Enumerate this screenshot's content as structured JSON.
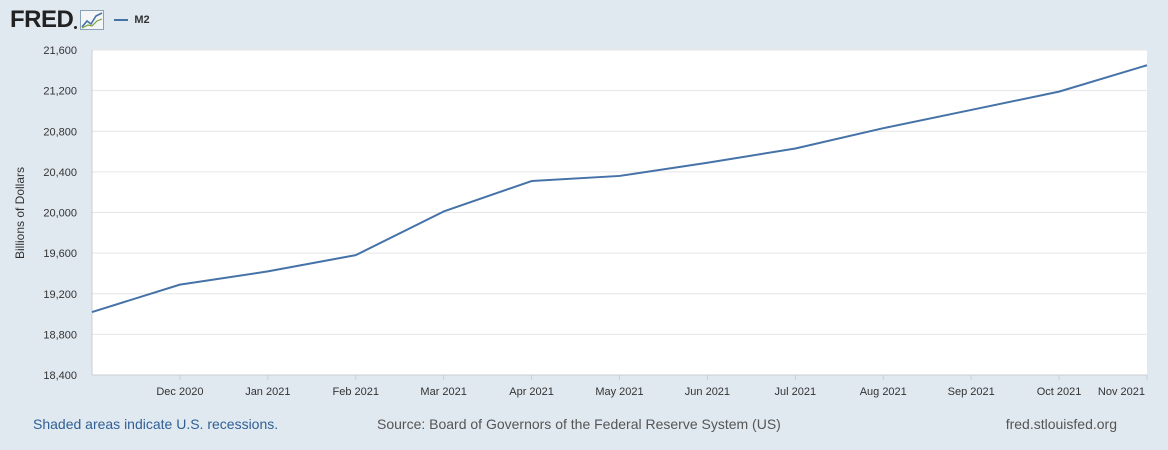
{
  "header": {
    "logo_text": "FRED",
    "logo_icon": "chart-line-icon",
    "legend_label": "M2",
    "series_color": "#4572a7"
  },
  "chart_data": {
    "type": "line",
    "title": "",
    "xlabel": "",
    "ylabel": "Billions of Dollars",
    "ylim": [
      18400,
      21600
    ],
    "yticks": [
      18400,
      18800,
      19200,
      19600,
      20000,
      20400,
      20800,
      21200,
      21600
    ],
    "ytick_labels": [
      "18,400",
      "18,800",
      "19,200",
      "19,600",
      "20,000",
      "20,400",
      "20,800",
      "21,200",
      "21,600"
    ],
    "xtick_labels": [
      "Dec 2020",
      "Jan 2021",
      "Feb 2021",
      "Mar 2021",
      "Apr 2021",
      "May 2021",
      "Jun 2021",
      "Jul 2021",
      "Aug 2021",
      "Sep 2021",
      "Oct 2021",
      "Nov 2021"
    ],
    "x": [
      "2020-11-01",
      "2020-12-01",
      "2021-01-01",
      "2021-02-01",
      "2021-03-01",
      "2021-04-01",
      "2021-05-01",
      "2021-06-01",
      "2021-07-01",
      "2021-08-01",
      "2021-09-01",
      "2021-10-01",
      "2021-11-01"
    ],
    "series": [
      {
        "name": "M2",
        "values": [
          19020,
          19290,
          19420,
          19580,
          20010,
          20310,
          20360,
          20490,
          20630,
          20830,
          21010,
          21190,
          21450
        ]
      }
    ],
    "grid": true,
    "legend": "top-left"
  },
  "footer": {
    "recessions_note": "Shaded areas indicate U.S. recessions.",
    "source": "Source: Board of Governors of the Federal Reserve System (US)",
    "site": "fred.stlouisfed.org"
  }
}
